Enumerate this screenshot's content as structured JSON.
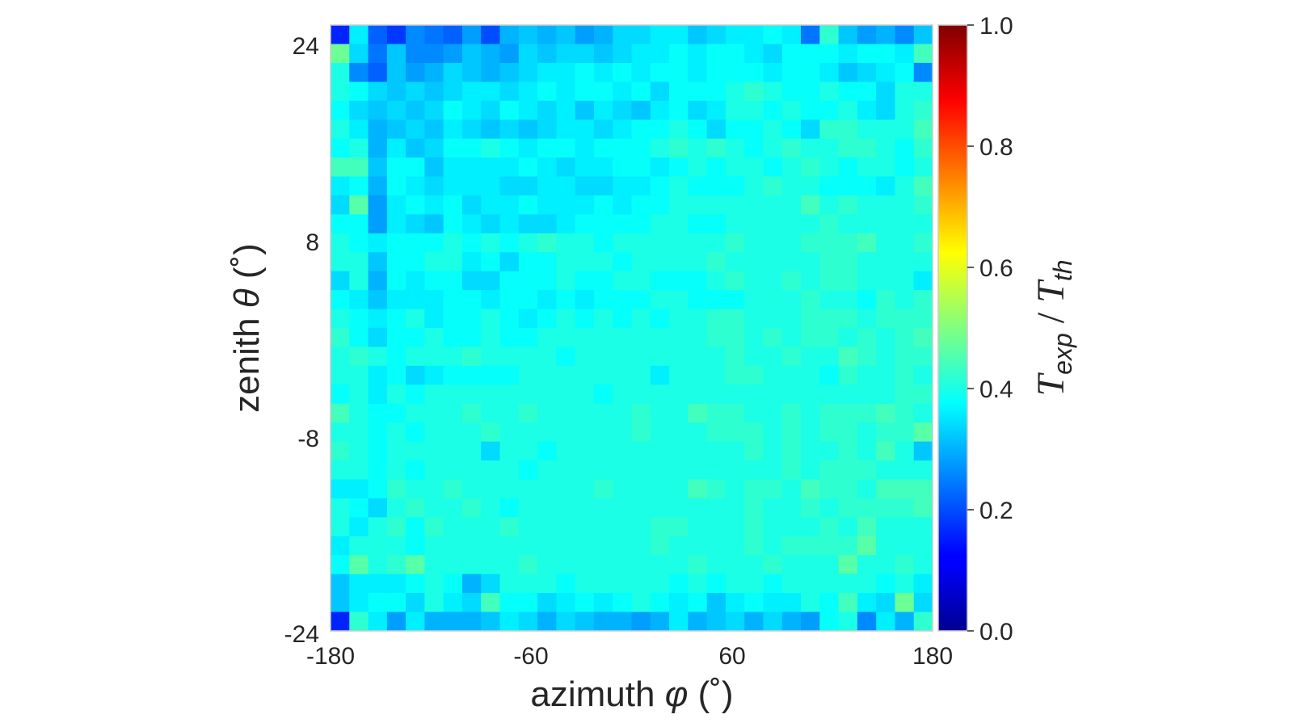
{
  "chart_data": {
    "type": "heatmap",
    "xlabel_text": "azimuth ",
    "xlabel_symbol": "φ",
    "xlabel_unit": " (˚)",
    "ylabel_text": "zenith ",
    "ylabel_symbol": "θ",
    "ylabel_unit": " (˚)",
    "xlim": [
      -180,
      180
    ],
    "ylim": [
      -24,
      24
    ],
    "x_ticks": [
      "-180",
      "-60",
      "60",
      "180"
    ],
    "x_tick_values": [
      -180,
      -60,
      60,
      180
    ],
    "y_ticks": [
      "24",
      "8",
      "-8",
      "-24"
    ],
    "y_tick_values": [
      24,
      8,
      -8,
      -24
    ],
    "colorbar": {
      "range": [
        0.0,
        1.0
      ],
      "colormap": "jet",
      "ticks": [
        "1.0",
        "0.8",
        "0.6",
        "0.4",
        "0.2",
        "0.0"
      ],
      "tick_values": [
        1.0,
        0.8,
        0.6,
        0.4,
        0.2,
        0.0
      ],
      "label_main_1": "T",
      "label_sub_1": "exp",
      "label_sep": " / ",
      "label_main_2": "T",
      "label_sub_2": "th"
    },
    "grid": false,
    "rows_order": "top_to_bottom",
    "values": [
      [
        0.16,
        0.36,
        0.22,
        0.18,
        0.26,
        0.24,
        0.22,
        0.28,
        0.2,
        0.3,
        0.32,
        0.3,
        0.32,
        0.28,
        0.3,
        0.34,
        0.34,
        0.36,
        0.36,
        0.32,
        0.34,
        0.36,
        0.36,
        0.38,
        0.36,
        0.24,
        0.42,
        0.32,
        0.28,
        0.3,
        0.26,
        0.32
      ],
      [
        0.48,
        0.34,
        0.24,
        0.32,
        0.26,
        0.26,
        0.28,
        0.32,
        0.3,
        0.28,
        0.34,
        0.32,
        0.34,
        0.34,
        0.32,
        0.34,
        0.36,
        0.36,
        0.38,
        0.36,
        0.38,
        0.38,
        0.36,
        0.34,
        0.38,
        0.38,
        0.38,
        0.36,
        0.38,
        0.38,
        0.36,
        0.44
      ],
      [
        0.4,
        0.26,
        0.22,
        0.32,
        0.28,
        0.3,
        0.34,
        0.32,
        0.3,
        0.32,
        0.34,
        0.36,
        0.36,
        0.38,
        0.36,
        0.38,
        0.36,
        0.38,
        0.38,
        0.36,
        0.38,
        0.38,
        0.38,
        0.36,
        0.38,
        0.38,
        0.36,
        0.32,
        0.34,
        0.36,
        0.38,
        0.26
      ],
      [
        0.4,
        0.38,
        0.34,
        0.32,
        0.34,
        0.32,
        0.34,
        0.36,
        0.36,
        0.34,
        0.36,
        0.38,
        0.36,
        0.38,
        0.38,
        0.36,
        0.38,
        0.34,
        0.38,
        0.38,
        0.38,
        0.4,
        0.42,
        0.4,
        0.38,
        0.38,
        0.4,
        0.38,
        0.38,
        0.34,
        0.4,
        0.4
      ],
      [
        0.38,
        0.34,
        0.32,
        0.34,
        0.32,
        0.34,
        0.38,
        0.36,
        0.34,
        0.38,
        0.36,
        0.34,
        0.36,
        0.32,
        0.36,
        0.34,
        0.32,
        0.36,
        0.38,
        0.34,
        0.36,
        0.4,
        0.4,
        0.38,
        0.4,
        0.38,
        0.38,
        0.4,
        0.36,
        0.34,
        0.4,
        0.42
      ],
      [
        0.4,
        0.36,
        0.3,
        0.32,
        0.34,
        0.32,
        0.36,
        0.34,
        0.32,
        0.34,
        0.32,
        0.34,
        0.36,
        0.36,
        0.34,
        0.36,
        0.38,
        0.38,
        0.4,
        0.38,
        0.34,
        0.38,
        0.38,
        0.4,
        0.38,
        0.34,
        0.42,
        0.42,
        0.4,
        0.4,
        0.4,
        0.44
      ],
      [
        0.38,
        0.4,
        0.3,
        0.36,
        0.32,
        0.34,
        0.38,
        0.38,
        0.4,
        0.38,
        0.36,
        0.38,
        0.38,
        0.36,
        0.38,
        0.38,
        0.38,
        0.4,
        0.42,
        0.4,
        0.42,
        0.4,
        0.38,
        0.4,
        0.42,
        0.4,
        0.4,
        0.42,
        0.42,
        0.4,
        0.38,
        0.42
      ],
      [
        0.44,
        0.44,
        0.32,
        0.38,
        0.38,
        0.32,
        0.36,
        0.36,
        0.36,
        0.36,
        0.38,
        0.36,
        0.34,
        0.36,
        0.36,
        0.38,
        0.38,
        0.36,
        0.38,
        0.4,
        0.38,
        0.4,
        0.4,
        0.38,
        0.4,
        0.42,
        0.4,
        0.38,
        0.4,
        0.4,
        0.38,
        0.4
      ],
      [
        0.36,
        0.38,
        0.3,
        0.38,
        0.36,
        0.34,
        0.36,
        0.36,
        0.36,
        0.34,
        0.34,
        0.36,
        0.36,
        0.34,
        0.34,
        0.36,
        0.36,
        0.38,
        0.4,
        0.38,
        0.38,
        0.38,
        0.4,
        0.42,
        0.4,
        0.4,
        0.38,
        0.38,
        0.38,
        0.36,
        0.4,
        0.44
      ],
      [
        0.34,
        0.46,
        0.28,
        0.36,
        0.38,
        0.36,
        0.38,
        0.34,
        0.36,
        0.36,
        0.38,
        0.36,
        0.36,
        0.36,
        0.38,
        0.36,
        0.38,
        0.38,
        0.4,
        0.4,
        0.4,
        0.4,
        0.4,
        0.4,
        0.4,
        0.44,
        0.4,
        0.42,
        0.4,
        0.4,
        0.4,
        0.42
      ],
      [
        0.38,
        0.38,
        0.28,
        0.36,
        0.34,
        0.32,
        0.38,
        0.36,
        0.34,
        0.36,
        0.34,
        0.34,
        0.36,
        0.38,
        0.38,
        0.38,
        0.38,
        0.4,
        0.4,
        0.38,
        0.38,
        0.4,
        0.4,
        0.4,
        0.4,
        0.4,
        0.42,
        0.4,
        0.4,
        0.4,
        0.4,
        0.4
      ],
      [
        0.4,
        0.38,
        0.36,
        0.38,
        0.38,
        0.38,
        0.4,
        0.38,
        0.4,
        0.38,
        0.4,
        0.42,
        0.4,
        0.4,
        0.38,
        0.4,
        0.4,
        0.4,
        0.4,
        0.4,
        0.4,
        0.42,
        0.4,
        0.4,
        0.4,
        0.42,
        0.42,
        0.42,
        0.44,
        0.4,
        0.4,
        0.42
      ],
      [
        0.4,
        0.4,
        0.32,
        0.38,
        0.38,
        0.4,
        0.4,
        0.36,
        0.38,
        0.34,
        0.38,
        0.38,
        0.4,
        0.4,
        0.4,
        0.38,
        0.4,
        0.4,
        0.4,
        0.4,
        0.42,
        0.4,
        0.4,
        0.4,
        0.4,
        0.4,
        0.42,
        0.42,
        0.4,
        0.4,
        0.4,
        0.4
      ],
      [
        0.34,
        0.4,
        0.3,
        0.38,
        0.36,
        0.38,
        0.38,
        0.34,
        0.34,
        0.38,
        0.38,
        0.38,
        0.4,
        0.38,
        0.38,
        0.4,
        0.4,
        0.38,
        0.38,
        0.38,
        0.4,
        0.42,
        0.4,
        0.4,
        0.42,
        0.4,
        0.42,
        0.42,
        0.4,
        0.4,
        0.4,
        0.36
      ],
      [
        0.38,
        0.36,
        0.32,
        0.36,
        0.36,
        0.36,
        0.38,
        0.38,
        0.36,
        0.38,
        0.38,
        0.36,
        0.38,
        0.36,
        0.38,
        0.38,
        0.38,
        0.4,
        0.4,
        0.38,
        0.38,
        0.38,
        0.4,
        0.4,
        0.4,
        0.42,
        0.4,
        0.4,
        0.38,
        0.42,
        0.4,
        0.42
      ],
      [
        0.4,
        0.38,
        0.36,
        0.38,
        0.4,
        0.36,
        0.38,
        0.38,
        0.4,
        0.38,
        0.36,
        0.38,
        0.4,
        0.38,
        0.4,
        0.38,
        0.4,
        0.38,
        0.4,
        0.4,
        0.42,
        0.42,
        0.4,
        0.4,
        0.4,
        0.42,
        0.42,
        0.42,
        0.4,
        0.42,
        0.42,
        0.42
      ],
      [
        0.42,
        0.38,
        0.34,
        0.38,
        0.38,
        0.4,
        0.38,
        0.38,
        0.4,
        0.38,
        0.38,
        0.4,
        0.4,
        0.4,
        0.4,
        0.4,
        0.4,
        0.4,
        0.4,
        0.4,
        0.42,
        0.42,
        0.4,
        0.42,
        0.4,
        0.42,
        0.42,
        0.4,
        0.42,
        0.4,
        0.42,
        0.44
      ],
      [
        0.4,
        0.42,
        0.4,
        0.38,
        0.4,
        0.4,
        0.4,
        0.42,
        0.4,
        0.4,
        0.4,
        0.4,
        0.38,
        0.4,
        0.4,
        0.4,
        0.4,
        0.4,
        0.4,
        0.4,
        0.4,
        0.42,
        0.4,
        0.4,
        0.42,
        0.4,
        0.4,
        0.44,
        0.42,
        0.4,
        0.42,
        0.42
      ],
      [
        0.4,
        0.4,
        0.36,
        0.38,
        0.34,
        0.36,
        0.38,
        0.38,
        0.38,
        0.38,
        0.4,
        0.4,
        0.4,
        0.4,
        0.4,
        0.4,
        0.4,
        0.36,
        0.4,
        0.4,
        0.4,
        0.42,
        0.42,
        0.4,
        0.4,
        0.4,
        0.38,
        0.42,
        0.4,
        0.4,
        0.42,
        0.4
      ],
      [
        0.38,
        0.4,
        0.36,
        0.4,
        0.38,
        0.4,
        0.4,
        0.4,
        0.4,
        0.4,
        0.4,
        0.4,
        0.4,
        0.4,
        0.38,
        0.4,
        0.4,
        0.4,
        0.4,
        0.4,
        0.4,
        0.4,
        0.4,
        0.4,
        0.4,
        0.4,
        0.4,
        0.4,
        0.4,
        0.4,
        0.42,
        0.42
      ],
      [
        0.44,
        0.4,
        0.38,
        0.38,
        0.4,
        0.4,
        0.4,
        0.42,
        0.4,
        0.4,
        0.42,
        0.4,
        0.4,
        0.4,
        0.4,
        0.4,
        0.42,
        0.4,
        0.4,
        0.44,
        0.42,
        0.42,
        0.4,
        0.4,
        0.42,
        0.4,
        0.42,
        0.42,
        0.42,
        0.44,
        0.42,
        0.4
      ],
      [
        0.4,
        0.4,
        0.38,
        0.4,
        0.38,
        0.4,
        0.4,
        0.4,
        0.42,
        0.4,
        0.4,
        0.4,
        0.4,
        0.4,
        0.4,
        0.4,
        0.42,
        0.4,
        0.4,
        0.4,
        0.42,
        0.42,
        0.42,
        0.4,
        0.42,
        0.4,
        0.42,
        0.42,
        0.4,
        0.42,
        0.42,
        0.46
      ],
      [
        0.42,
        0.4,
        0.38,
        0.4,
        0.4,
        0.4,
        0.4,
        0.4,
        0.34,
        0.4,
        0.4,
        0.38,
        0.4,
        0.4,
        0.4,
        0.4,
        0.4,
        0.4,
        0.4,
        0.4,
        0.4,
        0.4,
        0.42,
        0.4,
        0.42,
        0.4,
        0.4,
        0.42,
        0.4,
        0.44,
        0.4,
        0.32
      ],
      [
        0.4,
        0.4,
        0.38,
        0.4,
        0.38,
        0.4,
        0.4,
        0.4,
        0.4,
        0.4,
        0.38,
        0.4,
        0.4,
        0.4,
        0.4,
        0.4,
        0.4,
        0.4,
        0.4,
        0.4,
        0.4,
        0.4,
        0.4,
        0.4,
        0.42,
        0.4,
        0.42,
        0.42,
        0.42,
        0.4,
        0.4,
        0.4
      ],
      [
        0.36,
        0.36,
        0.38,
        0.42,
        0.4,
        0.4,
        0.42,
        0.4,
        0.4,
        0.4,
        0.4,
        0.4,
        0.4,
        0.4,
        0.42,
        0.4,
        0.4,
        0.4,
        0.4,
        0.44,
        0.42,
        0.4,
        0.42,
        0.42,
        0.4,
        0.44,
        0.42,
        0.42,
        0.4,
        0.44,
        0.44,
        0.44
      ],
      [
        0.4,
        0.38,
        0.34,
        0.4,
        0.42,
        0.4,
        0.4,
        0.42,
        0.4,
        0.38,
        0.4,
        0.4,
        0.4,
        0.4,
        0.4,
        0.4,
        0.4,
        0.4,
        0.4,
        0.4,
        0.4,
        0.4,
        0.42,
        0.4,
        0.4,
        0.42,
        0.4,
        0.42,
        0.42,
        0.42,
        0.42,
        0.44
      ],
      [
        0.4,
        0.36,
        0.4,
        0.42,
        0.38,
        0.42,
        0.4,
        0.4,
        0.4,
        0.42,
        0.4,
        0.4,
        0.4,
        0.4,
        0.4,
        0.4,
        0.4,
        0.42,
        0.42,
        0.4,
        0.4,
        0.4,
        0.42,
        0.4,
        0.4,
        0.4,
        0.42,
        0.4,
        0.44,
        0.4,
        0.4,
        0.4
      ],
      [
        0.36,
        0.4,
        0.4,
        0.4,
        0.38,
        0.4,
        0.4,
        0.4,
        0.4,
        0.4,
        0.4,
        0.4,
        0.4,
        0.4,
        0.4,
        0.4,
        0.4,
        0.42,
        0.4,
        0.4,
        0.4,
        0.4,
        0.42,
        0.4,
        0.42,
        0.42,
        0.42,
        0.42,
        0.46,
        0.4,
        0.4,
        0.4
      ],
      [
        0.38,
        0.46,
        0.4,
        0.42,
        0.46,
        0.4,
        0.4,
        0.4,
        0.4,
        0.4,
        0.42,
        0.4,
        0.4,
        0.4,
        0.4,
        0.4,
        0.4,
        0.4,
        0.4,
        0.42,
        0.4,
        0.4,
        0.4,
        0.42,
        0.4,
        0.4,
        0.4,
        0.46,
        0.4,
        0.4,
        0.42,
        0.4
      ],
      [
        0.32,
        0.36,
        0.36,
        0.36,
        0.38,
        0.4,
        0.38,
        0.3,
        0.34,
        0.4,
        0.4,
        0.4,
        0.38,
        0.4,
        0.4,
        0.4,
        0.4,
        0.4,
        0.38,
        0.4,
        0.38,
        0.4,
        0.4,
        0.38,
        0.4,
        0.4,
        0.4,
        0.4,
        0.4,
        0.38,
        0.4,
        0.36
      ],
      [
        0.32,
        0.36,
        0.38,
        0.38,
        0.34,
        0.4,
        0.36,
        0.34,
        0.44,
        0.38,
        0.38,
        0.34,
        0.36,
        0.38,
        0.36,
        0.38,
        0.4,
        0.38,
        0.36,
        0.38,
        0.32,
        0.36,
        0.38,
        0.36,
        0.36,
        0.4,
        0.38,
        0.44,
        0.36,
        0.34,
        0.48,
        0.34
      ],
      [
        0.16,
        0.42,
        0.36,
        0.28,
        0.36,
        0.3,
        0.3,
        0.3,
        0.32,
        0.36,
        0.34,
        0.3,
        0.34,
        0.32,
        0.3,
        0.3,
        0.28,
        0.3,
        0.36,
        0.3,
        0.32,
        0.34,
        0.3,
        0.34,
        0.3,
        0.28,
        0.38,
        0.4,
        0.26,
        0.36,
        0.3,
        0.42
      ]
    ]
  }
}
